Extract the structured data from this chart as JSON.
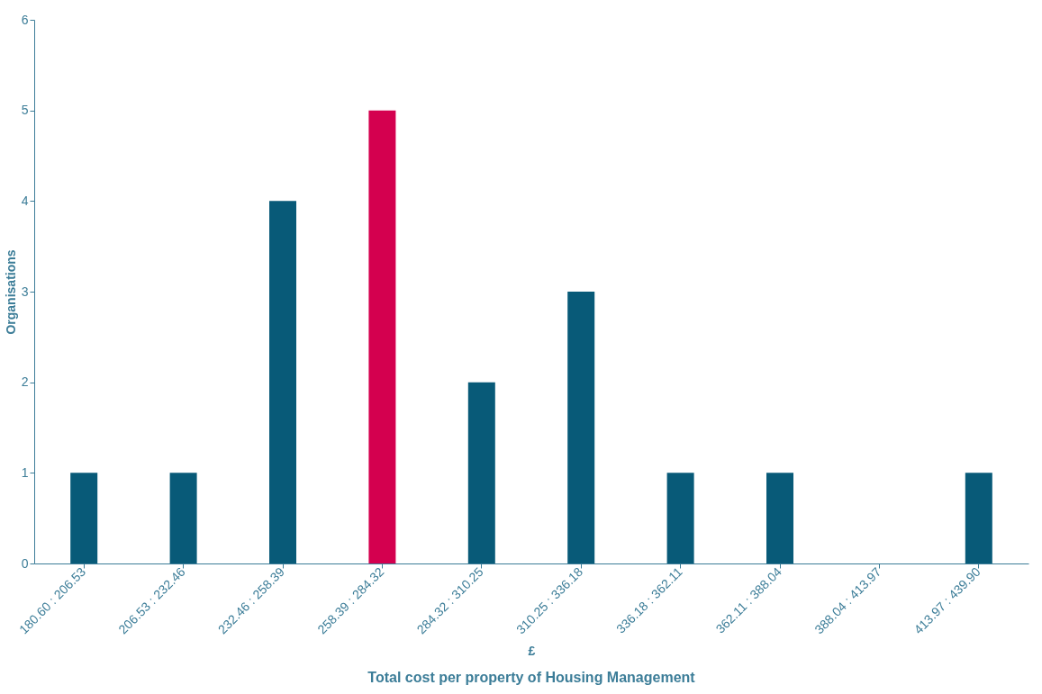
{
  "chart_data": {
    "type": "bar",
    "title": "Total cost per property of Housing Management",
    "xlabel": "£",
    "ylabel": "Organisations",
    "categories": [
      "180.60 : 206.53",
      "206.53 : 232.46",
      "232.46 : 258.39",
      "258.39 : 284.32",
      "284.32 : 310.25",
      "310.25 : 336.18",
      "336.18 : 362.11",
      "362.11 : 388.04",
      "388.04 : 413.97",
      "413.97 : 439.90"
    ],
    "values": [
      1,
      1,
      4,
      5,
      2,
      3,
      1,
      1,
      0,
      1
    ],
    "colors": [
      "#085a78",
      "#085a78",
      "#085a78",
      "#d4004f",
      "#085a78",
      "#085a78",
      "#085a78",
      "#085a78",
      "#085a78",
      "#085a78"
    ],
    "ylim": [
      0,
      6
    ],
    "yticks": [
      0,
      1,
      2,
      3,
      4,
      5,
      6
    ],
    "grid": false,
    "legend": false
  }
}
